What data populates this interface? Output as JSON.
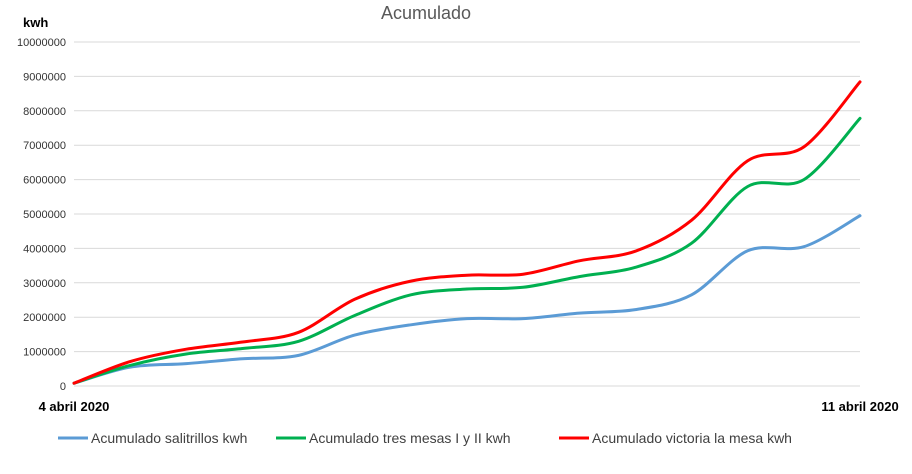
{
  "chart_data": {
    "type": "line",
    "title": "Acumulado",
    "ylabel": "kwh",
    "xlabel": "",
    "ylim": [
      0,
      10000000
    ],
    "yticks": [
      "0",
      "1000000",
      "2000000",
      "3000000",
      "4000000",
      "5000000",
      "6000000",
      "7000000",
      "8000000",
      "9000000",
      "10000000"
    ],
    "x_tick_labels": [
      "4 abril 2020",
      "11 abril 2020"
    ],
    "grid": true,
    "legend": "bottom",
    "x": [
      0,
      0.5,
      1,
      1.5,
      2,
      2.5,
      3,
      3.5,
      4,
      4.5,
      5,
      5.5,
      6,
      6.5,
      7
    ],
    "series": [
      {
        "name": "Acumulado salitrillos kwh",
        "color": "#5b9bd5",
        "values": [
          80000,
          550000,
          650000,
          790000,
          890000,
          1480000,
          1780000,
          1960000,
          1960000,
          2120000,
          2220000,
          2650000,
          3930000,
          4050000,
          4950000
        ]
      },
      {
        "name": "Acumulado tres mesas I y II kwh",
        "color": "#00b050",
        "values": [
          80000,
          600000,
          930000,
          1090000,
          1300000,
          2050000,
          2650000,
          2820000,
          2870000,
          3180000,
          3450000,
          4150000,
          5800000,
          6000000,
          7780000
        ]
      },
      {
        "name": "Acumulado victoria la mesa kwh",
        "color": "#ff0000",
        "values": [
          80000,
          710000,
          1070000,
          1280000,
          1560000,
          2520000,
          3050000,
          3220000,
          3250000,
          3640000,
          3920000,
          4820000,
          6550000,
          6950000,
          8840000
        ]
      }
    ]
  }
}
